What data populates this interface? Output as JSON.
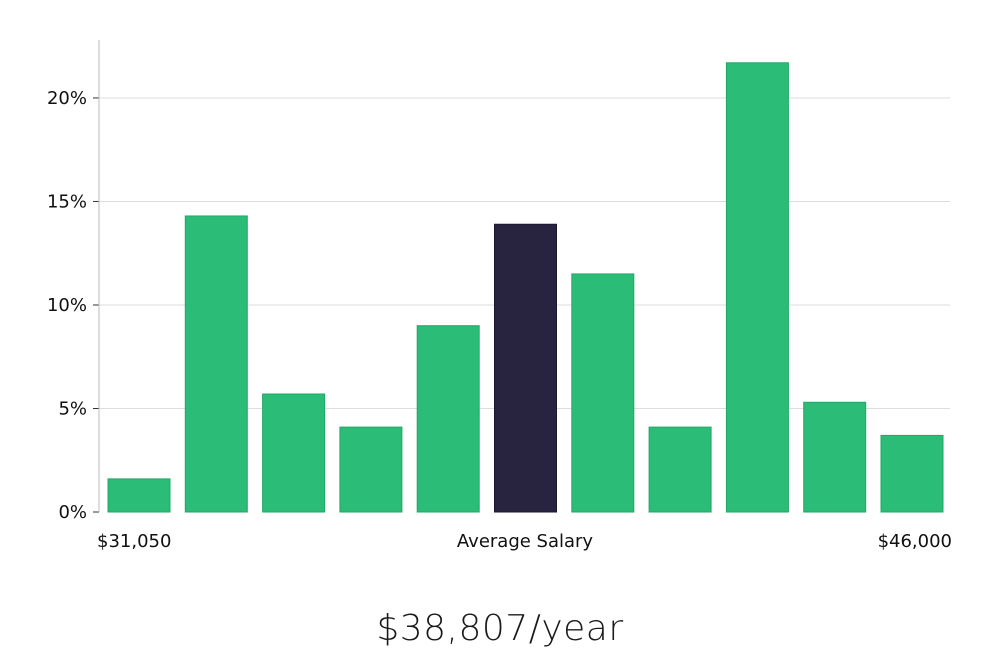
{
  "chart_data": {
    "type": "bar",
    "ylim": [
      0,
      22.8
    ],
    "yticks": [
      0,
      5,
      10,
      15,
      20
    ],
    "ytick_labels": [
      "0%",
      "5%",
      "10%",
      "15%",
      "20%"
    ],
    "grid": true,
    "values": [
      1.6,
      14.3,
      5.7,
      4.1,
      9.0,
      13.9,
      11.5,
      4.1,
      21.7,
      5.3,
      3.7
    ],
    "highlight_index": 5,
    "colors": {
      "bar": "#2bbd77",
      "highlight": "#28233f",
      "grid": "#dddddd",
      "axis": "#bbbbbb"
    },
    "x_start_label": "$31,050",
    "x_center_label": "Average Salary",
    "x_end_label": "$46,000"
  },
  "summary": {
    "value": "$38,807/year"
  }
}
